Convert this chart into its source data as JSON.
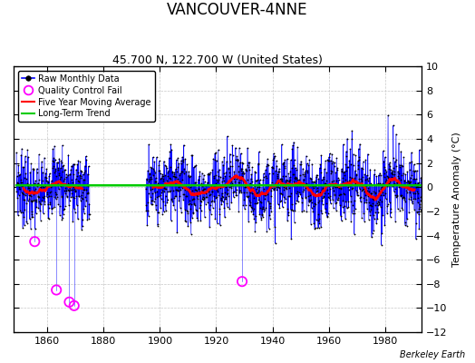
{
  "title": "VANCOUVER-4NNE",
  "subtitle": "45.700 N, 122.700 W (United States)",
  "ylabel": "Temperature Anomaly (°C)",
  "credit": "Berkeley Earth",
  "xlim": [
    1848,
    1993
  ],
  "ylim": [
    -12,
    10
  ],
  "yticks": [
    -12,
    -10,
    -8,
    -6,
    -4,
    -2,
    0,
    2,
    4,
    6,
    8,
    10
  ],
  "xticks": [
    1860,
    1880,
    1900,
    1920,
    1940,
    1960,
    1980
  ],
  "start_year": 1849,
  "end_year": 1993,
  "gap_start": 1875,
  "gap_end": 1895,
  "long_term_trend_y": 0.1,
  "noise_std": 1.5,
  "raw_color": "#0000ff",
  "moving_avg_color": "#ff0000",
  "trend_color": "#00cc00",
  "qc_fail_color": "#ff00ff",
  "background_color": "#ffffff",
  "grid_color": "#c8c8c8",
  "title_fontsize": 12,
  "subtitle_fontsize": 9,
  "tick_fontsize": 8,
  "ylabel_fontsize": 8,
  "seed": 7,
  "qc_times": [
    1855.5,
    1863.2,
    1867.8,
    1869.5,
    1929.2
  ],
  "qc_values": [
    -4.5,
    -8.5,
    -9.5,
    -9.8,
    -7.8
  ]
}
